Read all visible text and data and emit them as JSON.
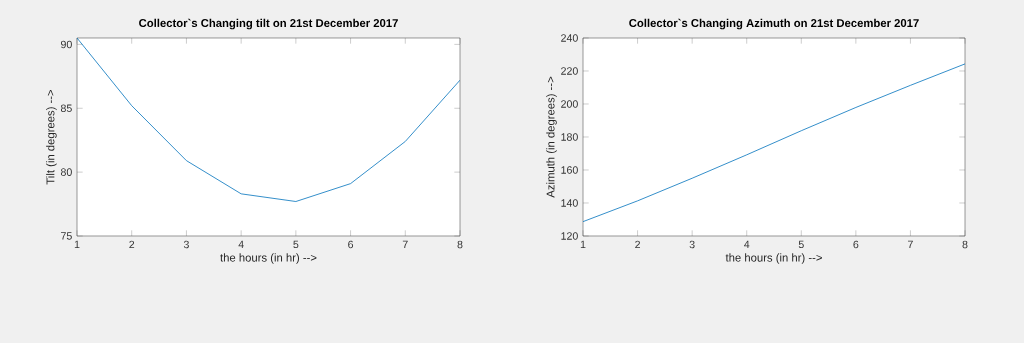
{
  "chart_data": [
    {
      "type": "line",
      "title": "Collector`s Changing tilt on 21st December 2017",
      "xlabel": "the hours (in hr) -->",
      "ylabel": "Tilt (in degrees) -->",
      "x": [
        1,
        2,
        3,
        4,
        5,
        6,
        7,
        8
      ],
      "series": [
        {
          "color": "#0072bd",
          "values": [
            90.5,
            85.2,
            80.9,
            78.3,
            77.7,
            79.1,
            82.4,
            87.2
          ]
        }
      ],
      "xlim": [
        1,
        8
      ],
      "ylim": [
        75,
        90.5
      ],
      "xticks": [
        1,
        2,
        3,
        4,
        5,
        6,
        7,
        8
      ],
      "yticks": [
        75,
        80,
        85,
        90
      ],
      "marker": "none"
    },
    {
      "type": "line",
      "title": "Collector`s Changing Azimuth on 21st December 2017",
      "xlabel": "the hours (in hr) -->",
      "ylabel": "Azimuth (in degrees) -->",
      "x": [
        1,
        2,
        3,
        4,
        5,
        6,
        7,
        8
      ],
      "series": [
        {
          "color": "#0072bd",
          "values": [
            128.7,
            141.3,
            155.0,
            169.2,
            183.8,
            197.9,
            211.3,
            224.3
          ]
        }
      ],
      "xlim": [
        1,
        8
      ],
      "ylim": [
        120,
        240
      ],
      "xticks": [
        1,
        2,
        3,
        4,
        5,
        6,
        7,
        8
      ],
      "yticks": [
        120,
        140,
        160,
        180,
        200,
        220,
        240
      ],
      "marker": "none"
    }
  ]
}
